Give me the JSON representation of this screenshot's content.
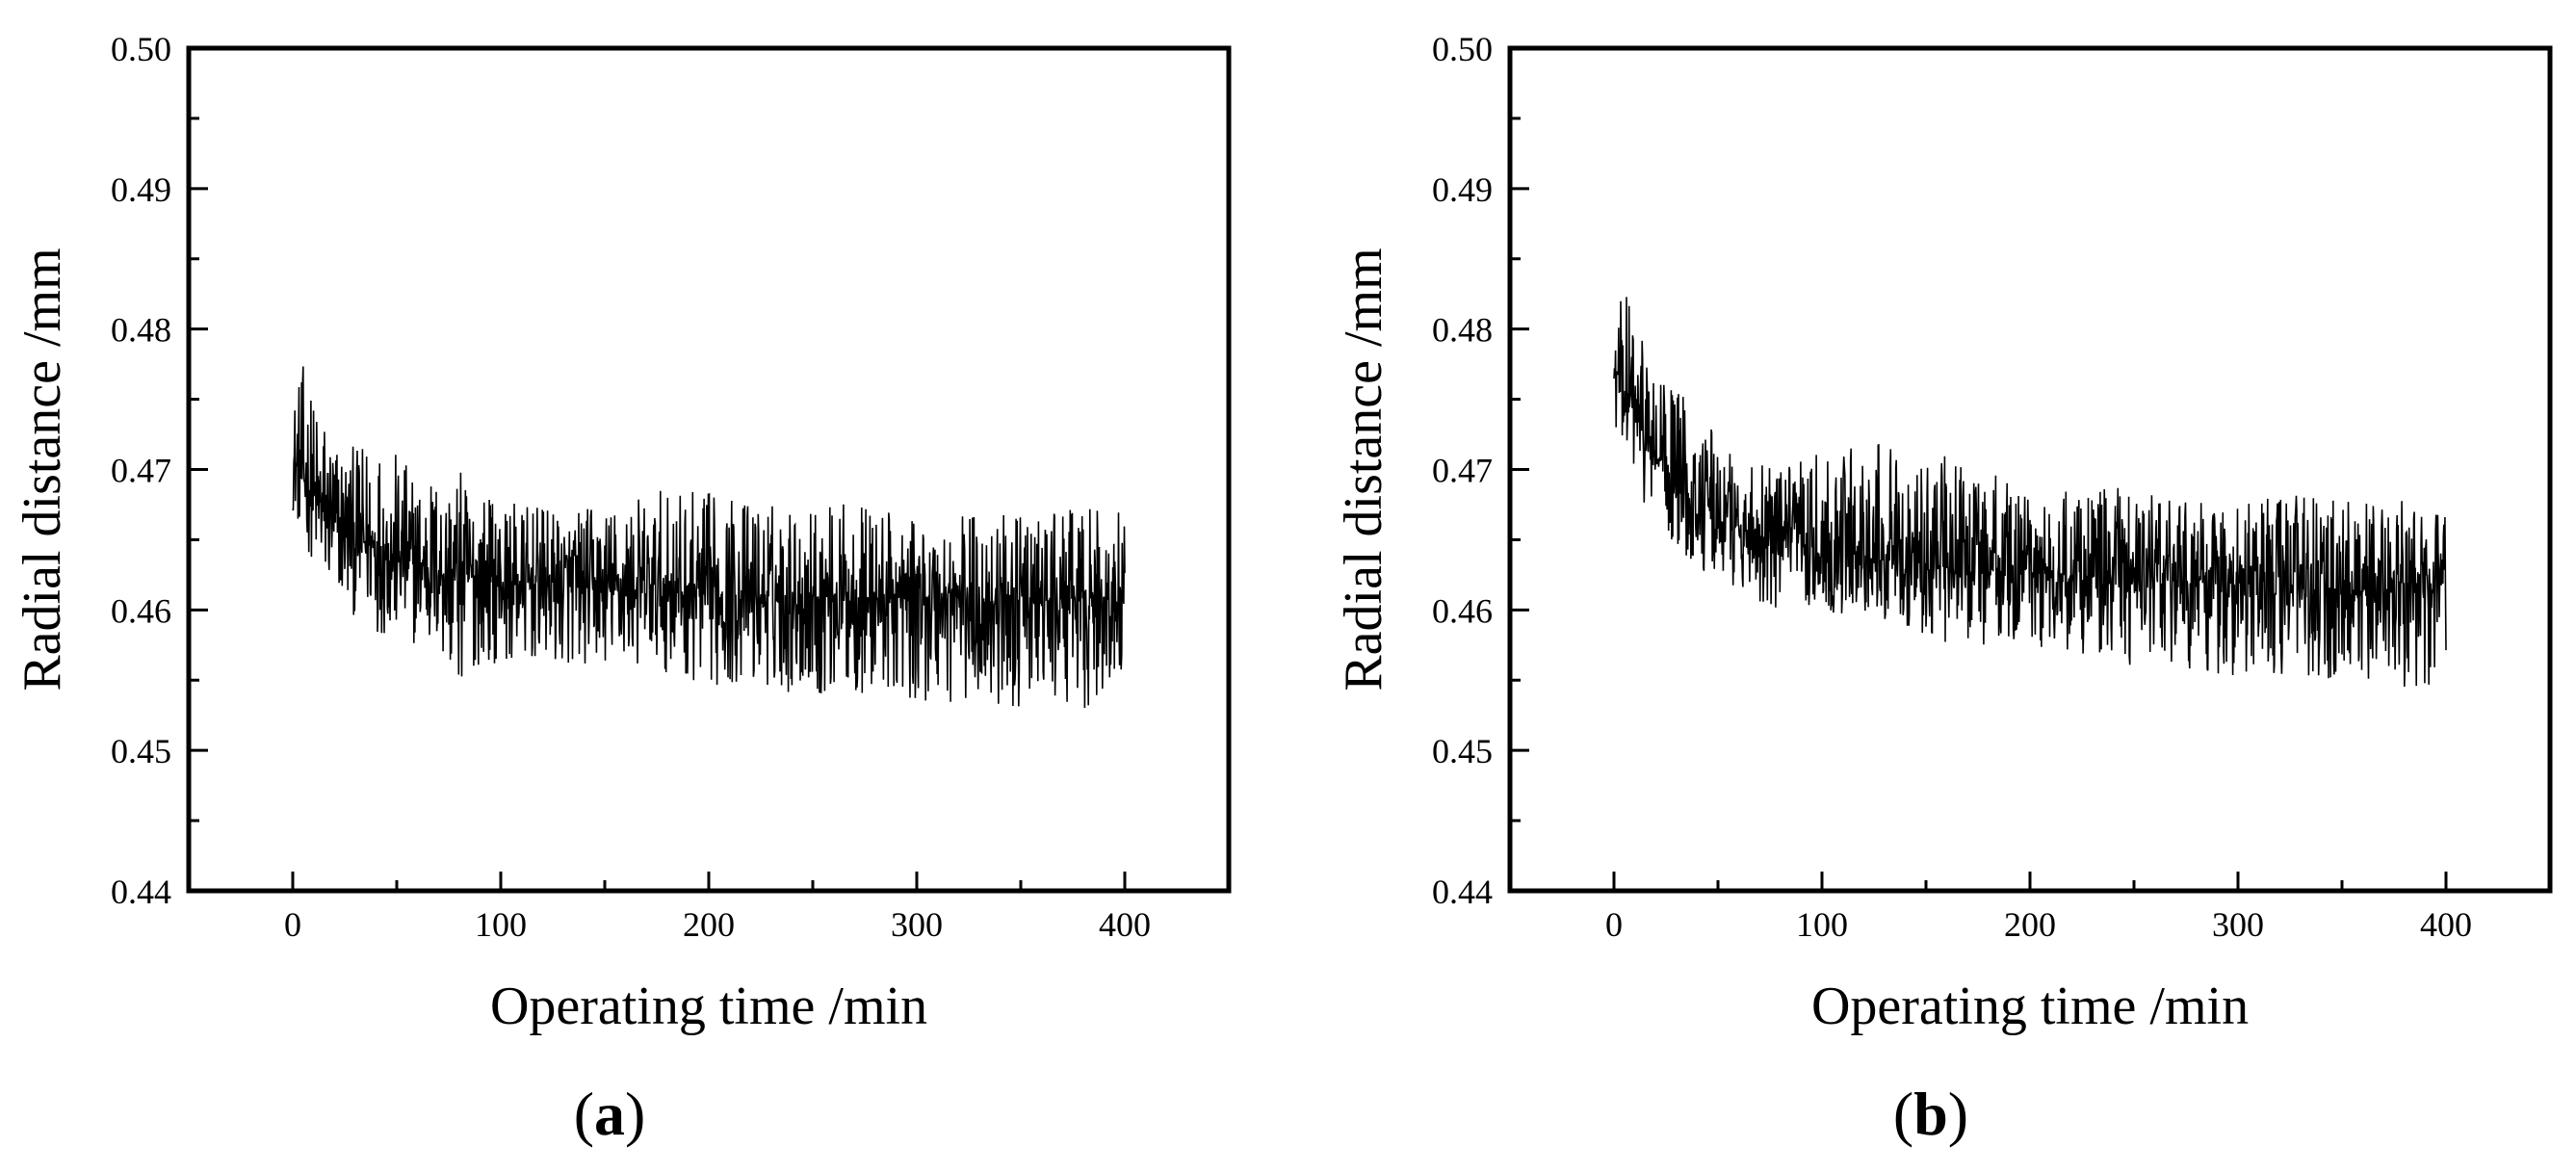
{
  "panels": [
    {
      "id": "a",
      "label_open": "(",
      "label_letter": "a",
      "label_close": ")"
    },
    {
      "id": "b",
      "label_open": "(",
      "label_letter": "b",
      "label_close": ")"
    }
  ],
  "chart_data": [
    {
      "type": "line",
      "title": "",
      "xlabel": "Operating time /min",
      "ylabel": "Radial distance /mm",
      "xlim": [
        -50,
        450
      ],
      "ylim": [
        0.44,
        0.5
      ],
      "xticks": [
        0,
        100,
        200,
        300,
        400
      ],
      "xtick_labels": [
        "0",
        "100",
        "200",
        "300",
        "400"
      ],
      "yticks": [
        0.44,
        0.45,
        0.46,
        0.47,
        0.48,
        0.49,
        0.5
      ],
      "ytick_labels": [
        "0.44",
        "0.45",
        "0.46",
        "0.47",
        "0.48",
        "0.49",
        "0.50"
      ],
      "grid": false,
      "legend": "none",
      "series": [
        {
          "color": "#000000",
          "x": [
            0,
            5,
            10,
            15,
            20,
            30,
            40,
            50,
            60,
            70,
            80,
            90,
            100,
            125,
            150,
            175,
            200,
            225,
            250,
            275,
            300,
            325,
            350,
            375,
            400
          ],
          "y": [
            0.4705,
            0.4695,
            0.468,
            0.4668,
            0.4662,
            0.4652,
            0.4645,
            0.4638,
            0.4632,
            0.4628,
            0.4625,
            0.4622,
            0.462,
            0.4617,
            0.4615,
            0.4613,
            0.4612,
            0.4611,
            0.461,
            0.4609,
            0.4608,
            0.4607,
            0.4606,
            0.4606,
            0.4605
          ],
          "y_upper": [
            0.4752,
            0.4775,
            0.4752,
            0.4745,
            0.4728,
            0.4715,
            0.4728,
            0.4712,
            0.4698,
            0.47,
            0.47,
            0.4688,
            0.4678,
            0.4672,
            0.4675,
            0.4685,
            0.4685,
            0.4678,
            0.4675,
            0.4678,
            0.4662,
            0.4672,
            0.4666,
            0.4672,
            0.4672
          ],
          "y_lower": [
            0.467,
            0.465,
            0.4632,
            0.4612,
            0.4605,
            0.4595,
            0.4585,
            0.4575,
            0.4575,
            0.4565,
            0.4538,
            0.4562,
            0.4562,
            0.456,
            0.456,
            0.4558,
            0.4545,
            0.4545,
            0.4538,
            0.4538,
            0.4535,
            0.453,
            0.453,
            0.453,
            0.453
          ]
        }
      ]
    },
    {
      "type": "line",
      "title": "",
      "xlabel": "Operating time /min",
      "ylabel": "Radial distance /mm",
      "xlim": [
        -50,
        450
      ],
      "ylim": [
        0.44,
        0.5
      ],
      "xticks": [
        0,
        100,
        200,
        300,
        400
      ],
      "xtick_labels": [
        "0",
        "100",
        "200",
        "300",
        "400"
      ],
      "yticks": [
        0.44,
        0.45,
        0.46,
        0.47,
        0.48,
        0.49,
        0.5
      ],
      "ytick_labels": [
        "0.44",
        "0.45",
        "0.46",
        "0.47",
        "0.48",
        "0.49",
        "0.50"
      ],
      "grid": false,
      "legend": "none",
      "series": [
        {
          "color": "#000000",
          "x": [
            0,
            5,
            10,
            15,
            20,
            30,
            40,
            50,
            60,
            70,
            80,
            90,
            100,
            125,
            150,
            175,
            200,
            225,
            250,
            275,
            300,
            325,
            350,
            375,
            400
          ],
          "y": [
            0.4768,
            0.4755,
            0.474,
            0.4725,
            0.471,
            0.4692,
            0.4678,
            0.4668,
            0.466,
            0.4655,
            0.465,
            0.4646,
            0.4642,
            0.4637,
            0.4633,
            0.463,
            0.4627,
            0.4624,
            0.4622,
            0.462,
            0.4618,
            0.4616,
            0.4615,
            0.4614,
            0.4613
          ],
          "y_upper": [
            0.4805,
            0.4828,
            0.482,
            0.4795,
            0.4768,
            0.4768,
            0.4738,
            0.4725,
            0.4712,
            0.4705,
            0.4698,
            0.4708,
            0.4715,
            0.472,
            0.4712,
            0.4708,
            0.4685,
            0.4692,
            0.4685,
            0.468,
            0.4675,
            0.4685,
            0.4678,
            0.4678,
            0.4678
          ],
          "y_lower": [
            0.4725,
            0.472,
            0.4688,
            0.4675,
            0.4658,
            0.4642,
            0.4628,
            0.462,
            0.4612,
            0.4605,
            0.46,
            0.4595,
            0.4598,
            0.4595,
            0.4578,
            0.4575,
            0.457,
            0.4568,
            0.456,
            0.4555,
            0.455,
            0.455,
            0.455,
            0.4545,
            0.4545
          ]
        }
      ]
    }
  ]
}
